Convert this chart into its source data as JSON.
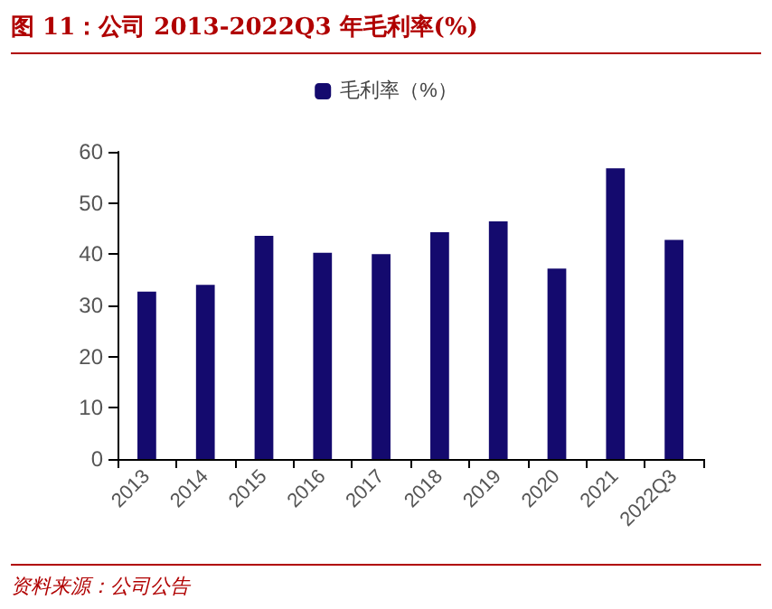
{
  "chart_data": {
    "type": "bar",
    "title": "图 11：公司 2013-2022Q3 年毛利率(%)",
    "categories": [
      "2013",
      "2014",
      "2015",
      "2016",
      "2017",
      "2018",
      "2019",
      "2020",
      "2021",
      "2022Q3"
    ],
    "series": [
      {
        "name": "毛利率（%）",
        "color": "#140a6e",
        "values": [
          32.7,
          34.0,
          43.6,
          40.3,
          40.0,
          44.3,
          46.4,
          37.2,
          56.8,
          42.8
        ]
      }
    ],
    "ylim": [
      0,
      60
    ],
    "yticks": [
      0,
      10,
      20,
      30,
      40,
      50,
      60
    ],
    "grid": false,
    "legend": "top",
    "annotations": [
      "资料来源：公司公告"
    ]
  }
}
